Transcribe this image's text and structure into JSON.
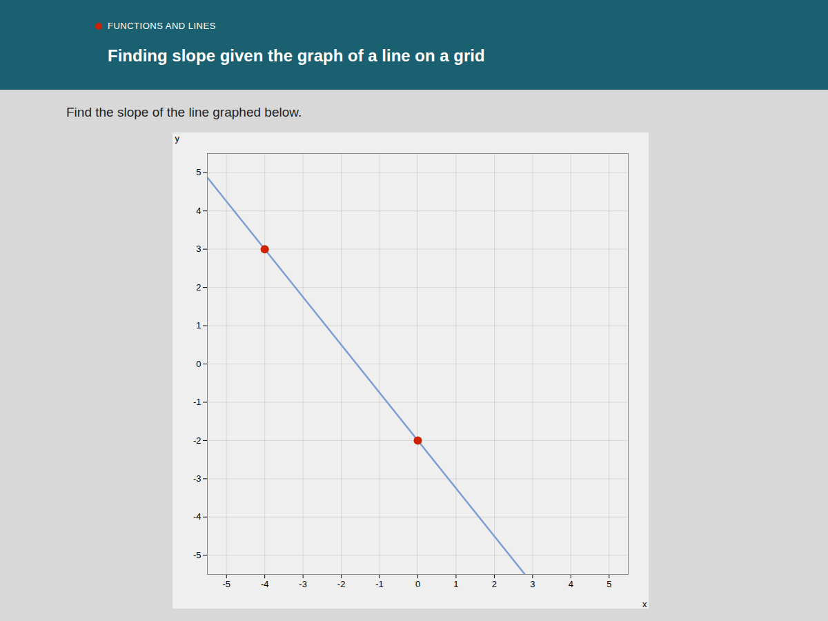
{
  "chart_data": {
    "type": "line",
    "title": "FUNCTIONS AND LINES",
    "subtitle": "Finding slope given the graph of a line on a grid",
    "annotations": [
      "Find the slope of the line graphed below."
    ],
    "xlabel": "x",
    "ylabel": "y",
    "xlim": [
      -5.5,
      5.5
    ],
    "ylim": [
      -5.5,
      5.5
    ],
    "xticks": [
      -5,
      -4,
      -3,
      -2,
      -1,
      0,
      1,
      2,
      3,
      4,
      5
    ],
    "yticks": [
      -5,
      -4,
      -3,
      -2,
      -1,
      0,
      1,
      2,
      3,
      4,
      5
    ],
    "grid": true,
    "series": [
      {
        "type": "line",
        "color": "#7B9FD4",
        "x": [
          -5.5,
          2.8
        ],
        "y": [
          4.875,
          -5.5
        ]
      },
      {
        "type": "scatter",
        "color": "#CC2200",
        "x": [
          -4,
          0
        ],
        "y": [
          3,
          -2
        ]
      }
    ]
  }
}
